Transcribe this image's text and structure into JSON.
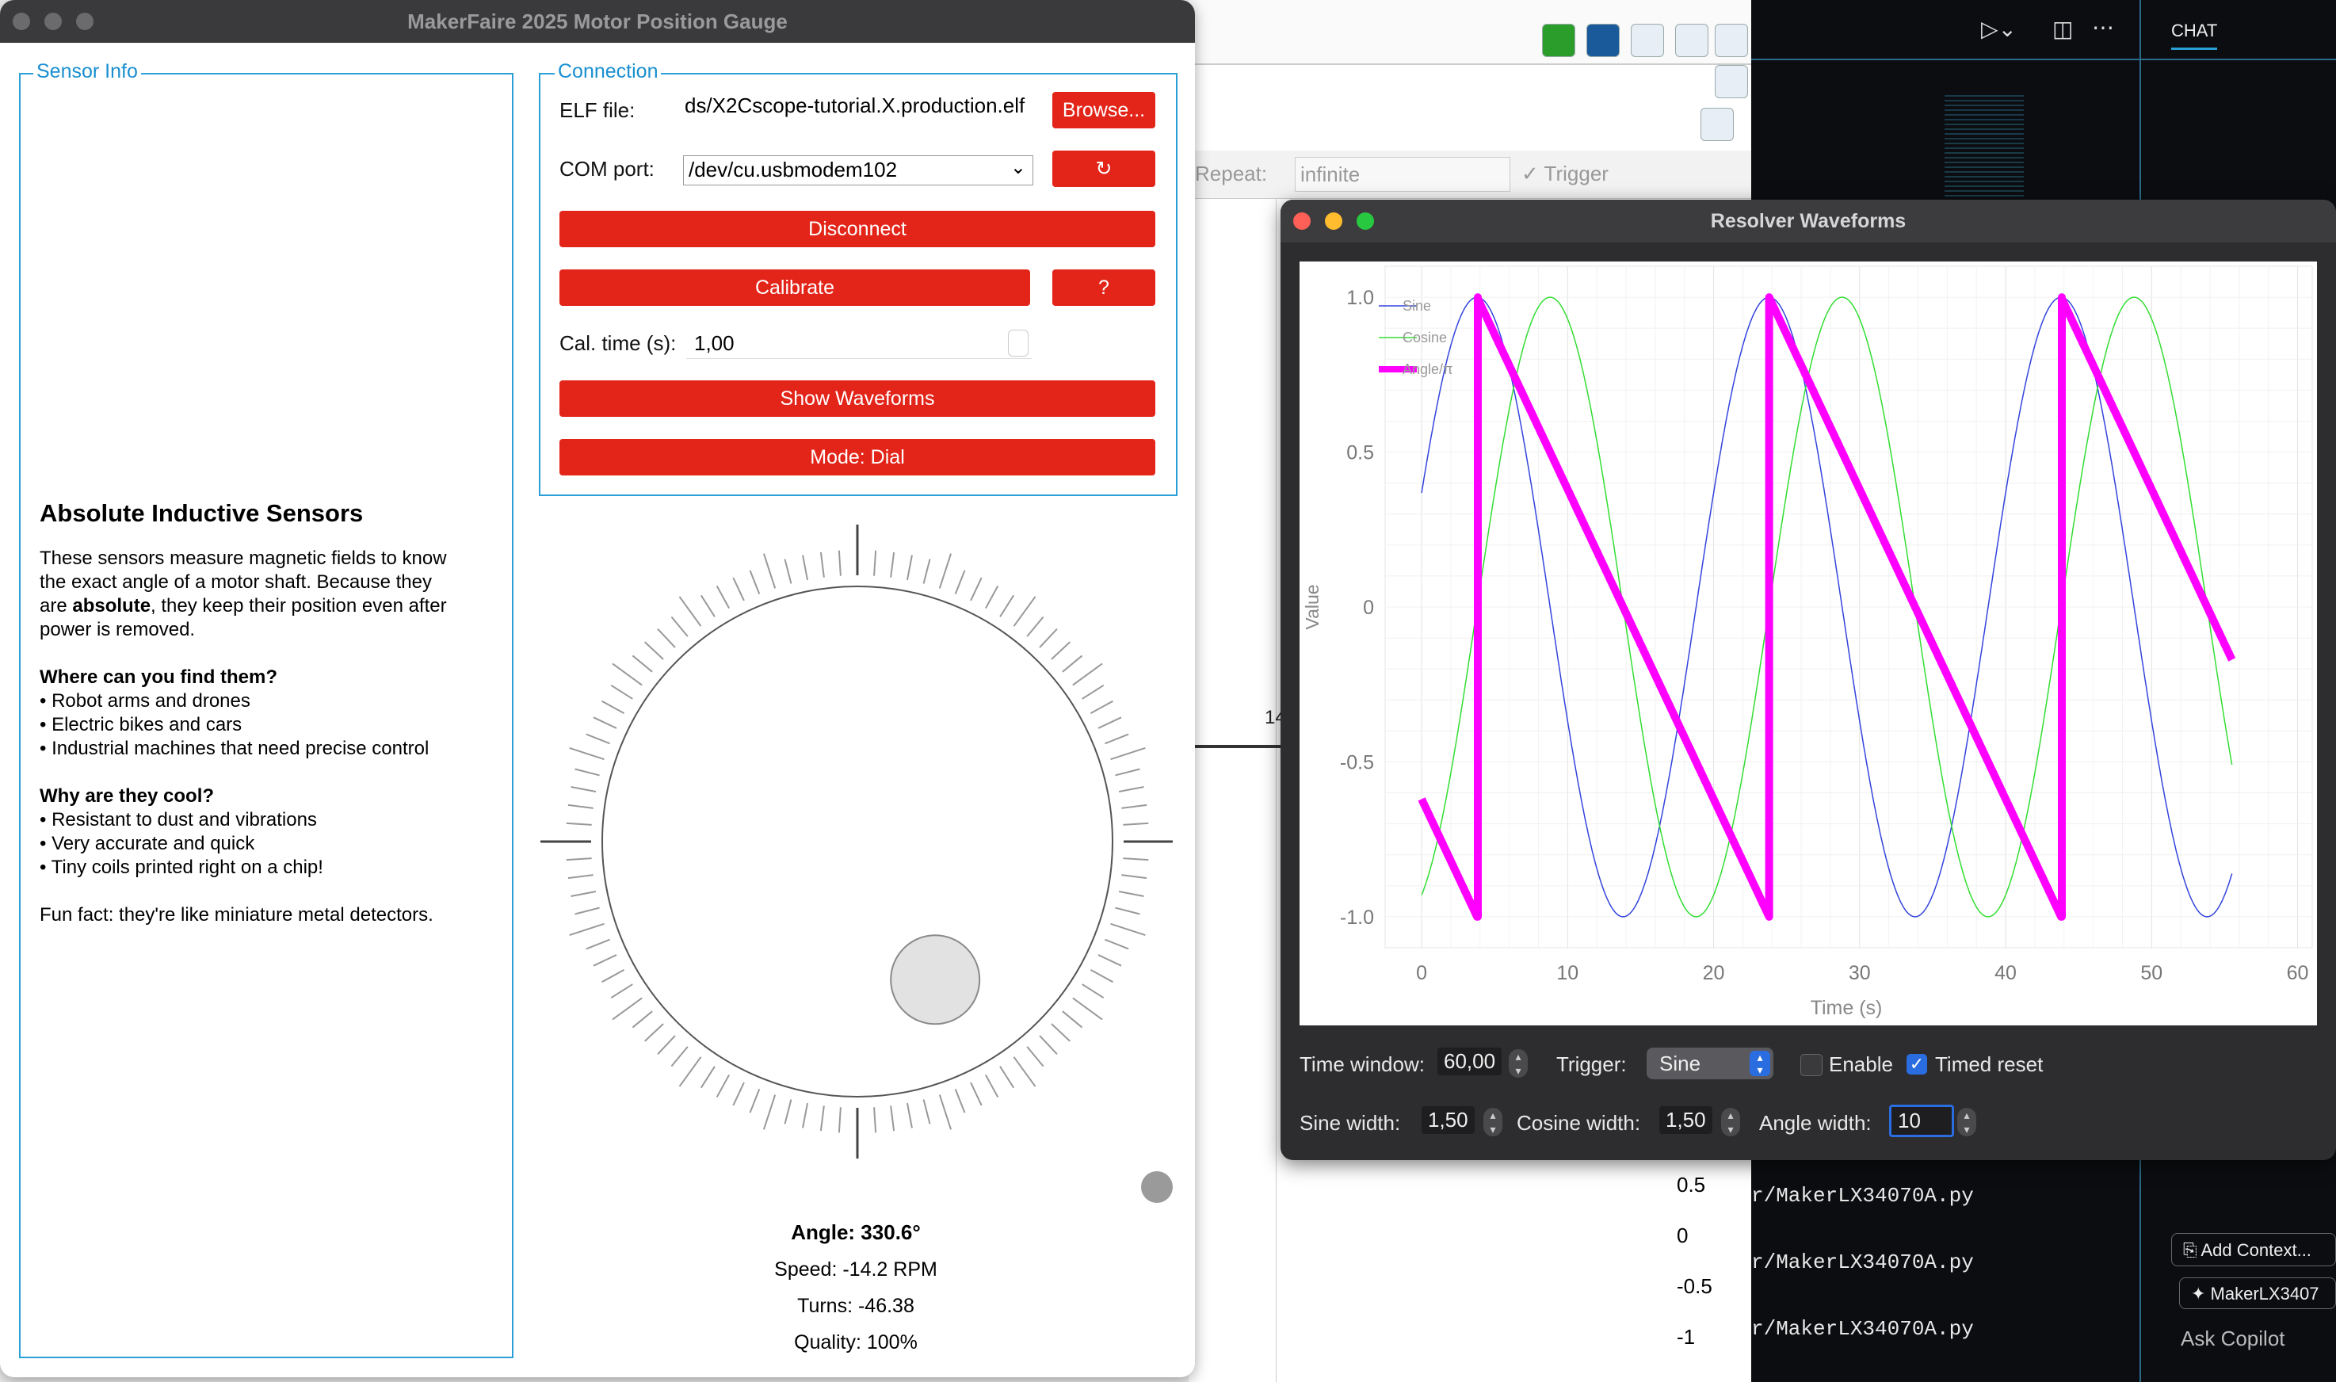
{
  "gauge_window": {
    "title": "MakerFaire 2025 Motor Position Gauge",
    "sensor_info": {
      "group_label": "Sensor Info",
      "heading": "Absolute Inductive Sensors",
      "intro_1": "These sensors measure magnetic fields to know",
      "intro_2": "the exact angle of a motor shaft. Because they",
      "intro_3a": "are ",
      "intro_3b": "absolute",
      "intro_3c": ", they keep their position even after",
      "intro_4": "power is removed.",
      "where_heading": "Where can you find them?",
      "where_items": [
        "• Robot arms and drones",
        "• Electric bikes and cars",
        "• Industrial machines that need precise control"
      ],
      "why_heading": "Why are they cool?",
      "why_items": [
        "• Resistant to dust and vibrations",
        "• Very accurate and quick",
        "• Tiny coils printed right on a chip!"
      ],
      "fun_fact": "Fun fact: they're like miniature metal detectors."
    },
    "connection": {
      "group_label": "Connection",
      "elf_label": "ELF file:",
      "elf_value": "ds/X2Cscope-tutorial.X.production.elf",
      "browse_label": "Browse...",
      "com_label": "COM port:",
      "com_value": "/dev/cu.usbmodem102",
      "refresh_label": "↻",
      "disconnect_label": "Disconnect",
      "calibrate_label": "Calibrate",
      "help_label": "?",
      "cal_time_label": "Cal. time (s):",
      "cal_time_value": "1,00",
      "show_waveforms_label": "Show Waveforms",
      "mode_label": "Mode: Dial"
    },
    "dial": {
      "angle_deg": 330.6,
      "angle_text": "Angle: 330.6°",
      "speed_text": "Speed: -14.2 RPM",
      "turns_text": "Turns: -46.38",
      "quality_text": "Quality: 100%"
    }
  },
  "background": {
    "repeat_label": "Repeat:",
    "repeat_value": "infinite",
    "trigger_label": "Trigger",
    "axis_fragment": "14",
    "axis_vals": [
      "0.5",
      "0",
      "-0.5",
      "-1"
    ],
    "file_lines": [
      "r/MakerLX34070A.py",
      "r/MakerLX34070A.py",
      "r/MakerLX34070A.py"
    ],
    "chat_tab": "CHAT",
    "add_context": "Add Context...",
    "file_chip": "MakerLX3407",
    "ask_copilot": "Ask Copilot"
  },
  "wave_window": {
    "title": "Resolver Waveforms",
    "time_window_label": "Time window:",
    "time_window_value": "60,00",
    "trigger_label": "Trigger:",
    "trigger_value": "Sine",
    "enable_label": "Enable",
    "timed_reset_label": "Timed reset",
    "sine_width_label": "Sine width:",
    "sine_width_value": "1,50",
    "cosine_width_label": "Cosine width:",
    "cosine_width_value": "1,50",
    "angle_width_label": "Angle width:",
    "angle_width_value": "10"
  },
  "chart_data": {
    "type": "line",
    "xlabel": "Time (s)",
    "ylabel": "Value",
    "xlim": [
      -2.5,
      61
    ],
    "ylim": [
      -1.1,
      1.1
    ],
    "xticks": [
      0,
      10,
      20,
      30,
      40,
      50,
      60
    ],
    "yticks": [
      1.0,
      0.5,
      0,
      -0.5,
      -1.0
    ],
    "ytick_labels": [
      "1.0",
      "0.5",
      "0",
      "-0.5",
      "-1.0"
    ],
    "grid": true,
    "legend_position": "top-left",
    "series": [
      {
        "name": "Sine",
        "color": "#3344dd",
        "period_s": 20,
        "phase_zero_s": 3.8,
        "x_start": 0,
        "x_end": 55.5,
        "line_width": 1.5
      },
      {
        "name": "Cosine",
        "color": "#33dd33",
        "period_s": 20,
        "phase_zero_s": 3.8,
        "x_start": 0,
        "x_end": 55.5,
        "line_width": 1.5
      },
      {
        "name": "Angle/π",
        "color": "#ff00ff",
        "period_s": 20,
        "wrap_s": 3.8,
        "x_start": 0,
        "x_end": 55.5,
        "line_width": 10
      }
    ]
  }
}
